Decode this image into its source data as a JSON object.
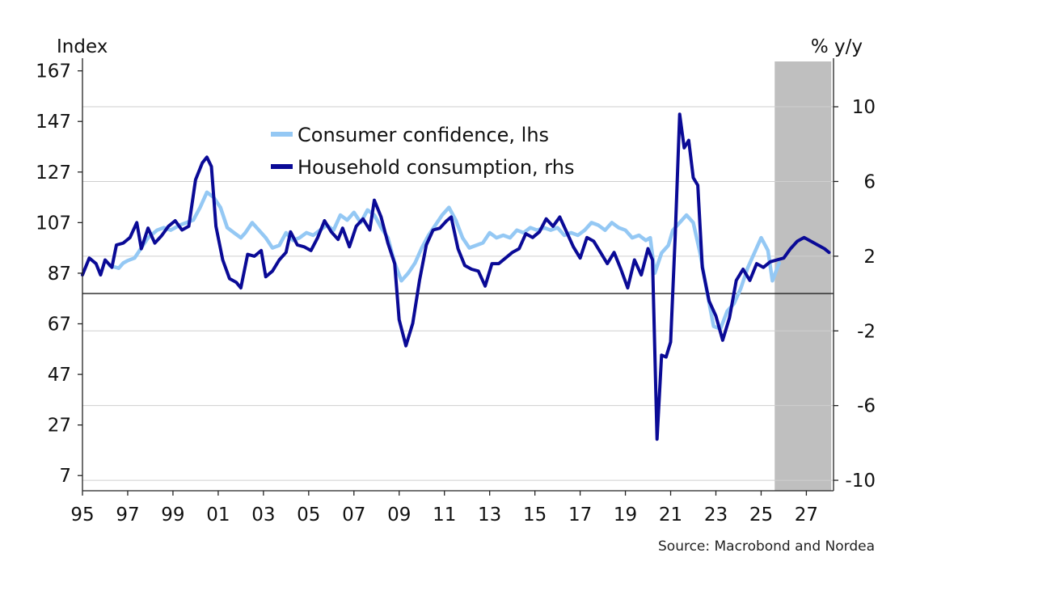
{
  "chart_data": {
    "type": "line",
    "left_axis": {
      "unit": "Index",
      "ylim": [
        1,
        172
      ],
      "ticks": [
        7,
        27,
        47,
        67,
        87,
        107,
        127,
        147,
        167
      ],
      "tick_labels": [
        "7",
        "27",
        "47",
        "67",
        "87",
        "107",
        "127",
        "147",
        "167"
      ]
    },
    "right_axis": {
      "unit": "% y/y",
      "ylim": [
        -10.56,
        12.6
      ],
      "ticks": [
        -10,
        -6,
        -2,
        2,
        6,
        10
      ],
      "tick_labels": [
        "-10",
        "-6",
        "-2",
        "2",
        "6",
        "10"
      ]
    },
    "x_axis": {
      "range": [
        1995,
        2028.2
      ],
      "ticks": [
        1995,
        1997,
        1999,
        2001,
        2003,
        2005,
        2007,
        2009,
        2011,
        2013,
        2015,
        2017,
        2019,
        2021,
        2023,
        2025,
        2027
      ],
      "tick_labels": [
        "95",
        "97",
        "99",
        "01",
        "03",
        "05",
        "07",
        "09",
        "11",
        "13",
        "15",
        "17",
        "19",
        "21",
        "23",
        "25",
        "27"
      ]
    },
    "forecast_period": [
      2025.6,
      2028.1
    ],
    "zero_line_rhs": 0,
    "grid": "horizontal",
    "legend_position": "top-center",
    "series": [
      {
        "name": "Consumer confidence, lhs",
        "axis": "left",
        "color": "#94c8f4",
        "points": [
          [
            1996.2,
            90
          ],
          [
            1996.6,
            89
          ],
          [
            1996.8,
            91
          ],
          [
            1997.0,
            92
          ],
          [
            1997.3,
            93
          ],
          [
            1997.6,
            97
          ],
          [
            1997.9,
            101
          ],
          [
            1998.3,
            104
          ],
          [
            1998.6,
            105
          ],
          [
            1998.9,
            104
          ],
          [
            1999.3,
            106
          ],
          [
            1999.6,
            107
          ],
          [
            1999.9,
            108
          ],
          [
            2000.2,
            113
          ],
          [
            2000.5,
            119
          ],
          [
            2000.8,
            117
          ],
          [
            2001.1,
            113
          ],
          [
            2001.4,
            105
          ],
          [
            2001.7,
            103
          ],
          [
            2002.0,
            101
          ],
          [
            2002.2,
            103
          ],
          [
            2002.5,
            107
          ],
          [
            2002.8,
            104
          ],
          [
            2003.1,
            101
          ],
          [
            2003.4,
            97
          ],
          [
            2003.7,
            98
          ],
          [
            2004.0,
            103
          ],
          [
            2004.3,
            100
          ],
          [
            2004.6,
            101
          ],
          [
            2004.9,
            103
          ],
          [
            2005.2,
            102
          ],
          [
            2005.5,
            104
          ],
          [
            2005.8,
            106
          ],
          [
            2006.1,
            104
          ],
          [
            2006.4,
            110
          ],
          [
            2006.7,
            108
          ],
          [
            2007.0,
            111
          ],
          [
            2007.3,
            107
          ],
          [
            2007.6,
            112
          ],
          [
            2007.9,
            110
          ],
          [
            2008.2,
            105
          ],
          [
            2008.5,
            101
          ],
          [
            2008.8,
            91
          ],
          [
            2009.1,
            84
          ],
          [
            2009.4,
            87
          ],
          [
            2009.7,
            91
          ],
          [
            2010.0,
            97
          ],
          [
            2010.3,
            102
          ],
          [
            2010.6,
            106
          ],
          [
            2010.9,
            110
          ],
          [
            2011.2,
            113
          ],
          [
            2011.5,
            108
          ],
          [
            2011.8,
            101
          ],
          [
            2012.1,
            97
          ],
          [
            2012.4,
            98
          ],
          [
            2012.7,
            99
          ],
          [
            2013.0,
            103
          ],
          [
            2013.3,
            101
          ],
          [
            2013.6,
            102
          ],
          [
            2013.9,
            101
          ],
          [
            2014.2,
            104
          ],
          [
            2014.5,
            103
          ],
          [
            2014.8,
            105
          ],
          [
            2015.1,
            104
          ],
          [
            2015.4,
            105
          ],
          [
            2015.7,
            104
          ],
          [
            2016.0,
            105
          ],
          [
            2016.3,
            102
          ],
          [
            2016.6,
            103
          ],
          [
            2016.9,
            102
          ],
          [
            2017.2,
            104
          ],
          [
            2017.5,
            107
          ],
          [
            2017.8,
            106
          ],
          [
            2018.1,
            104
          ],
          [
            2018.4,
            107
          ],
          [
            2018.7,
            105
          ],
          [
            2019.0,
            104
          ],
          [
            2019.3,
            101
          ],
          [
            2019.6,
            102
          ],
          [
            2019.9,
            100
          ],
          [
            2020.1,
            101
          ],
          [
            2020.3,
            87
          ],
          [
            2020.6,
            95
          ],
          [
            2020.9,
            98
          ],
          [
            2021.1,
            104
          ],
          [
            2021.4,
            107
          ],
          [
            2021.7,
            110
          ],
          [
            2022.0,
            107
          ],
          [
            2022.3,
            95
          ],
          [
            2022.6,
            80
          ],
          [
            2022.9,
            66
          ],
          [
            2023.2,
            65
          ],
          [
            2023.5,
            72
          ],
          [
            2023.8,
            75
          ],
          [
            2024.1,
            81
          ],
          [
            2024.4,
            89
          ],
          [
            2024.7,
            95
          ],
          [
            2025.0,
            101
          ],
          [
            2025.3,
            96
          ],
          [
            2025.5,
            84
          ],
          [
            2025.8,
            91
          ]
        ]
      },
      {
        "name": "Household consumption, rhs",
        "axis": "right",
        "color": "#0a0a96",
        "points": [
          [
            1995.0,
            1.0
          ],
          [
            1995.3,
            1.9
          ],
          [
            1995.6,
            1.6
          ],
          [
            1995.8,
            1.0
          ],
          [
            1996.0,
            1.8
          ],
          [
            1996.3,
            1.4
          ],
          [
            1996.5,
            2.6
          ],
          [
            1996.8,
            2.7
          ],
          [
            1997.1,
            3.0
          ],
          [
            1997.4,
            3.8
          ],
          [
            1997.6,
            2.4
          ],
          [
            1997.9,
            3.5
          ],
          [
            1998.2,
            2.7
          ],
          [
            1998.5,
            3.1
          ],
          [
            1998.8,
            3.6
          ],
          [
            1999.1,
            3.9
          ],
          [
            1999.4,
            3.4
          ],
          [
            1999.7,
            3.6
          ],
          [
            2000.0,
            6.1
          ],
          [
            2000.3,
            7.0
          ],
          [
            2000.5,
            7.3
          ],
          [
            2000.7,
            6.8
          ],
          [
            2000.9,
            3.6
          ],
          [
            2001.2,
            1.8
          ],
          [
            2001.5,
            0.8
          ],
          [
            2001.8,
            0.6
          ],
          [
            2002.0,
            0.3
          ],
          [
            2002.3,
            2.1
          ],
          [
            2002.6,
            2.0
          ],
          [
            2002.9,
            2.3
          ],
          [
            2003.1,
            0.9
          ],
          [
            2003.4,
            1.2
          ],
          [
            2003.7,
            1.8
          ],
          [
            2004.0,
            2.2
          ],
          [
            2004.2,
            3.3
          ],
          [
            2004.5,
            2.6
          ],
          [
            2004.8,
            2.5
          ],
          [
            2005.1,
            2.3
          ],
          [
            2005.4,
            3.0
          ],
          [
            2005.7,
            3.9
          ],
          [
            2006.0,
            3.3
          ],
          [
            2006.3,
            2.9
          ],
          [
            2006.5,
            3.5
          ],
          [
            2006.8,
            2.5
          ],
          [
            2007.1,
            3.6
          ],
          [
            2007.4,
            4.0
          ],
          [
            2007.7,
            3.4
          ],
          [
            2007.9,
            5.0
          ],
          [
            2008.2,
            4.1
          ],
          [
            2008.5,
            2.7
          ],
          [
            2008.8,
            1.6
          ],
          [
            2009.0,
            -1.4
          ],
          [
            2009.3,
            -2.8
          ],
          [
            2009.6,
            -1.6
          ],
          [
            2009.9,
            0.7
          ],
          [
            2010.2,
            2.6
          ],
          [
            2010.5,
            3.4
          ],
          [
            2010.8,
            3.5
          ],
          [
            2011.1,
            3.9
          ],
          [
            2011.3,
            4.1
          ],
          [
            2011.6,
            2.4
          ],
          [
            2011.9,
            1.5
          ],
          [
            2012.2,
            1.3
          ],
          [
            2012.5,
            1.2
          ],
          [
            2012.8,
            0.4
          ],
          [
            2013.1,
            1.6
          ],
          [
            2013.4,
            1.6
          ],
          [
            2013.7,
            1.9
          ],
          [
            2014.0,
            2.2
          ],
          [
            2014.3,
            2.4
          ],
          [
            2014.6,
            3.2
          ],
          [
            2014.9,
            3.0
          ],
          [
            2015.2,
            3.3
          ],
          [
            2015.5,
            4.0
          ],
          [
            2015.8,
            3.6
          ],
          [
            2016.1,
            4.1
          ],
          [
            2016.4,
            3.3
          ],
          [
            2016.7,
            2.5
          ],
          [
            2017.0,
            1.9
          ],
          [
            2017.3,
            3.0
          ],
          [
            2017.6,
            2.8
          ],
          [
            2017.9,
            2.2
          ],
          [
            2018.2,
            1.6
          ],
          [
            2018.5,
            2.2
          ],
          [
            2018.8,
            1.3
          ],
          [
            2019.1,
            0.3
          ],
          [
            2019.4,
            1.8
          ],
          [
            2019.7,
            1.0
          ],
          [
            2020.0,
            2.4
          ],
          [
            2020.2,
            1.8
          ],
          [
            2020.4,
            -7.8
          ],
          [
            2020.6,
            -3.3
          ],
          [
            2020.8,
            -3.4
          ],
          [
            2021.0,
            -2.6
          ],
          [
            2021.2,
            3.0
          ],
          [
            2021.4,
            9.6
          ],
          [
            2021.6,
            7.8
          ],
          [
            2021.8,
            8.2
          ],
          [
            2022.0,
            6.2
          ],
          [
            2022.2,
            5.8
          ],
          [
            2022.4,
            1.4
          ],
          [
            2022.7,
            -0.4
          ],
          [
            2023.0,
            -1.2
          ],
          [
            2023.3,
            -2.5
          ],
          [
            2023.6,
            -1.3
          ],
          [
            2023.9,
            0.7
          ],
          [
            2024.2,
            1.3
          ],
          [
            2024.5,
            0.7
          ],
          [
            2024.8,
            1.6
          ],
          [
            2025.1,
            1.4
          ],
          [
            2025.4,
            1.7
          ],
          [
            2025.7,
            1.8
          ],
          [
            2026.0,
            1.9
          ],
          [
            2026.3,
            2.4
          ],
          [
            2026.6,
            2.8
          ],
          [
            2026.9,
            3.0
          ],
          [
            2027.2,
            2.8
          ],
          [
            2027.5,
            2.6
          ],
          [
            2027.8,
            2.4
          ],
          [
            2028.0,
            2.2
          ]
        ]
      }
    ],
    "source": "Source: Macrobond and Nordea"
  }
}
